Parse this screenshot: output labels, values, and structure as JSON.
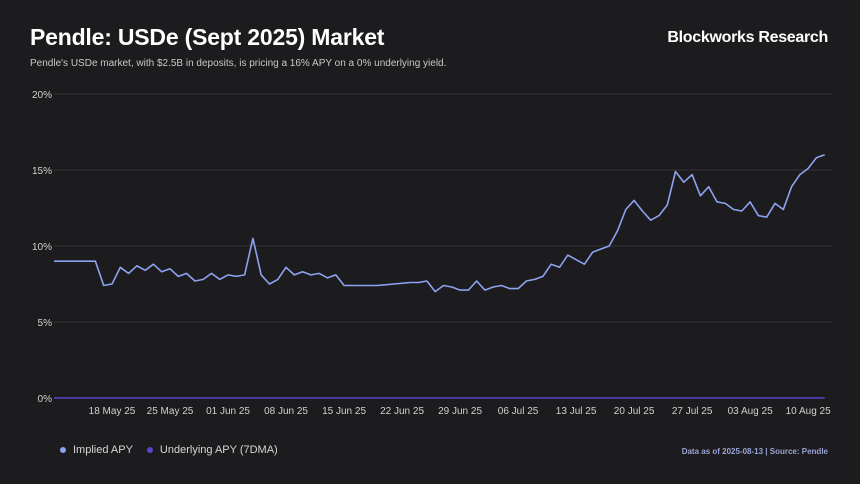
{
  "header": {
    "title": "Pendle: USDe (Sept 2025) Market",
    "brand": "Blockworks Research",
    "subtitle": "Pendle's USDe market, with $2.5B in deposits, is pricing a 16% APY on a 0% underlying yield."
  },
  "footnote": "Data as of 2025-08-13 | Source: Pendle",
  "colors": {
    "implied": "#8da2f0",
    "underlying": "#5a46c8",
    "grid": "#333336",
    "axis_text": "#d0d0d0"
  },
  "chart_data": {
    "type": "line",
    "title": "Pendle: USDe (Sept 2025) Market",
    "xlabel": "",
    "ylabel": "",
    "ylim": [
      0,
      20
    ],
    "y_ticks": [
      0,
      5,
      10,
      15,
      20
    ],
    "y_tick_labels": [
      "0%",
      "5%",
      "10%",
      "15%",
      "20%"
    ],
    "x_domain": [
      "2025-05-11",
      "2025-08-13"
    ],
    "x_ticks": [
      "2025-05-18",
      "2025-05-25",
      "2025-06-01",
      "2025-06-08",
      "2025-06-15",
      "2025-06-22",
      "2025-06-29",
      "2025-07-06",
      "2025-07-13",
      "2025-07-20",
      "2025-07-27",
      "2025-08-03",
      "2025-08-10"
    ],
    "x_tick_labels": [
      "18 May 25",
      "25 May 25",
      "01 Jun 25",
      "08 Jun 25",
      "15 Jun 25",
      "22 Jun 25",
      "29 Jun 25",
      "06 Jul 25",
      "13 Jul 25",
      "20 Jul 25",
      "27 Jul 25",
      "03 Aug 25",
      "10 Aug 25"
    ],
    "grid": true,
    "legend": "bottom-left",
    "series": [
      {
        "name": "Implied APY",
        "color": "#8da2f0",
        "points": [
          [
            "2025-05-11",
            9.0
          ],
          [
            "2025-05-13",
            9.0
          ],
          [
            "2025-05-15",
            9.0
          ],
          [
            "2025-05-16",
            9.0
          ],
          [
            "2025-05-17",
            7.4
          ],
          [
            "2025-05-18",
            7.5
          ],
          [
            "2025-05-19",
            8.6
          ],
          [
            "2025-05-20",
            8.2
          ],
          [
            "2025-05-21",
            8.7
          ],
          [
            "2025-05-22",
            8.4
          ],
          [
            "2025-05-23",
            8.8
          ],
          [
            "2025-05-24",
            8.3
          ],
          [
            "2025-05-25",
            8.5
          ],
          [
            "2025-05-26",
            8.0
          ],
          [
            "2025-05-27",
            8.2
          ],
          [
            "2025-05-28",
            7.7
          ],
          [
            "2025-05-29",
            7.8
          ],
          [
            "2025-05-30",
            8.2
          ],
          [
            "2025-05-31",
            7.8
          ],
          [
            "2025-06-01",
            8.1
          ],
          [
            "2025-06-02",
            8.0
          ],
          [
            "2025-06-03",
            8.1
          ],
          [
            "2025-06-04",
            10.5
          ],
          [
            "2025-06-05",
            8.1
          ],
          [
            "2025-06-06",
            7.5
          ],
          [
            "2025-06-07",
            7.8
          ],
          [
            "2025-06-08",
            8.6
          ],
          [
            "2025-06-09",
            8.1
          ],
          [
            "2025-06-10",
            8.3
          ],
          [
            "2025-06-11",
            8.1
          ],
          [
            "2025-06-12",
            8.2
          ],
          [
            "2025-06-13",
            7.9
          ],
          [
            "2025-06-14",
            8.1
          ],
          [
            "2025-06-15",
            7.4
          ],
          [
            "2025-06-17",
            7.4
          ],
          [
            "2025-06-19",
            7.4
          ],
          [
            "2025-06-21",
            7.5
          ],
          [
            "2025-06-23",
            7.6
          ],
          [
            "2025-06-24",
            7.6
          ],
          [
            "2025-06-25",
            7.7
          ],
          [
            "2025-06-26",
            7.0
          ],
          [
            "2025-06-27",
            7.4
          ],
          [
            "2025-06-28",
            7.3
          ],
          [
            "2025-06-29",
            7.1
          ],
          [
            "2025-06-30",
            7.1
          ],
          [
            "2025-07-01",
            7.7
          ],
          [
            "2025-07-02",
            7.1
          ],
          [
            "2025-07-03",
            7.3
          ],
          [
            "2025-07-04",
            7.4
          ],
          [
            "2025-07-05",
            7.2
          ],
          [
            "2025-07-06",
            7.2
          ],
          [
            "2025-07-07",
            7.7
          ],
          [
            "2025-07-08",
            7.8
          ],
          [
            "2025-07-09",
            8.0
          ],
          [
            "2025-07-10",
            8.8
          ],
          [
            "2025-07-11",
            8.6
          ],
          [
            "2025-07-12",
            9.4
          ],
          [
            "2025-07-13",
            9.1
          ],
          [
            "2025-07-14",
            8.8
          ],
          [
            "2025-07-15",
            9.6
          ],
          [
            "2025-07-16",
            9.8
          ],
          [
            "2025-07-17",
            10.0
          ],
          [
            "2025-07-18",
            11.0
          ],
          [
            "2025-07-19",
            12.4
          ],
          [
            "2025-07-20",
            13.0
          ],
          [
            "2025-07-21",
            12.3
          ],
          [
            "2025-07-22",
            11.7
          ],
          [
            "2025-07-23",
            12.0
          ],
          [
            "2025-07-24",
            12.7
          ],
          [
            "2025-07-25",
            14.9
          ],
          [
            "2025-07-26",
            14.2
          ],
          [
            "2025-07-27",
            14.7
          ],
          [
            "2025-07-28",
            13.3
          ],
          [
            "2025-07-29",
            13.9
          ],
          [
            "2025-07-30",
            12.9
          ],
          [
            "2025-07-31",
            12.8
          ],
          [
            "2025-08-01",
            12.4
          ],
          [
            "2025-08-02",
            12.3
          ],
          [
            "2025-08-03",
            12.9
          ],
          [
            "2025-08-04",
            12.0
          ],
          [
            "2025-08-05",
            11.9
          ],
          [
            "2025-08-06",
            12.8
          ],
          [
            "2025-08-07",
            12.4
          ],
          [
            "2025-08-08",
            13.9
          ],
          [
            "2025-08-09",
            14.7
          ],
          [
            "2025-08-10",
            15.1
          ],
          [
            "2025-08-11",
            15.8
          ],
          [
            "2025-08-12",
            16.0
          ]
        ]
      },
      {
        "name": "Underlying APY (7DMA)",
        "color": "#5a46c8",
        "points": [
          [
            "2025-05-11",
            0.0
          ],
          [
            "2025-08-12",
            0.0
          ]
        ]
      }
    ]
  }
}
